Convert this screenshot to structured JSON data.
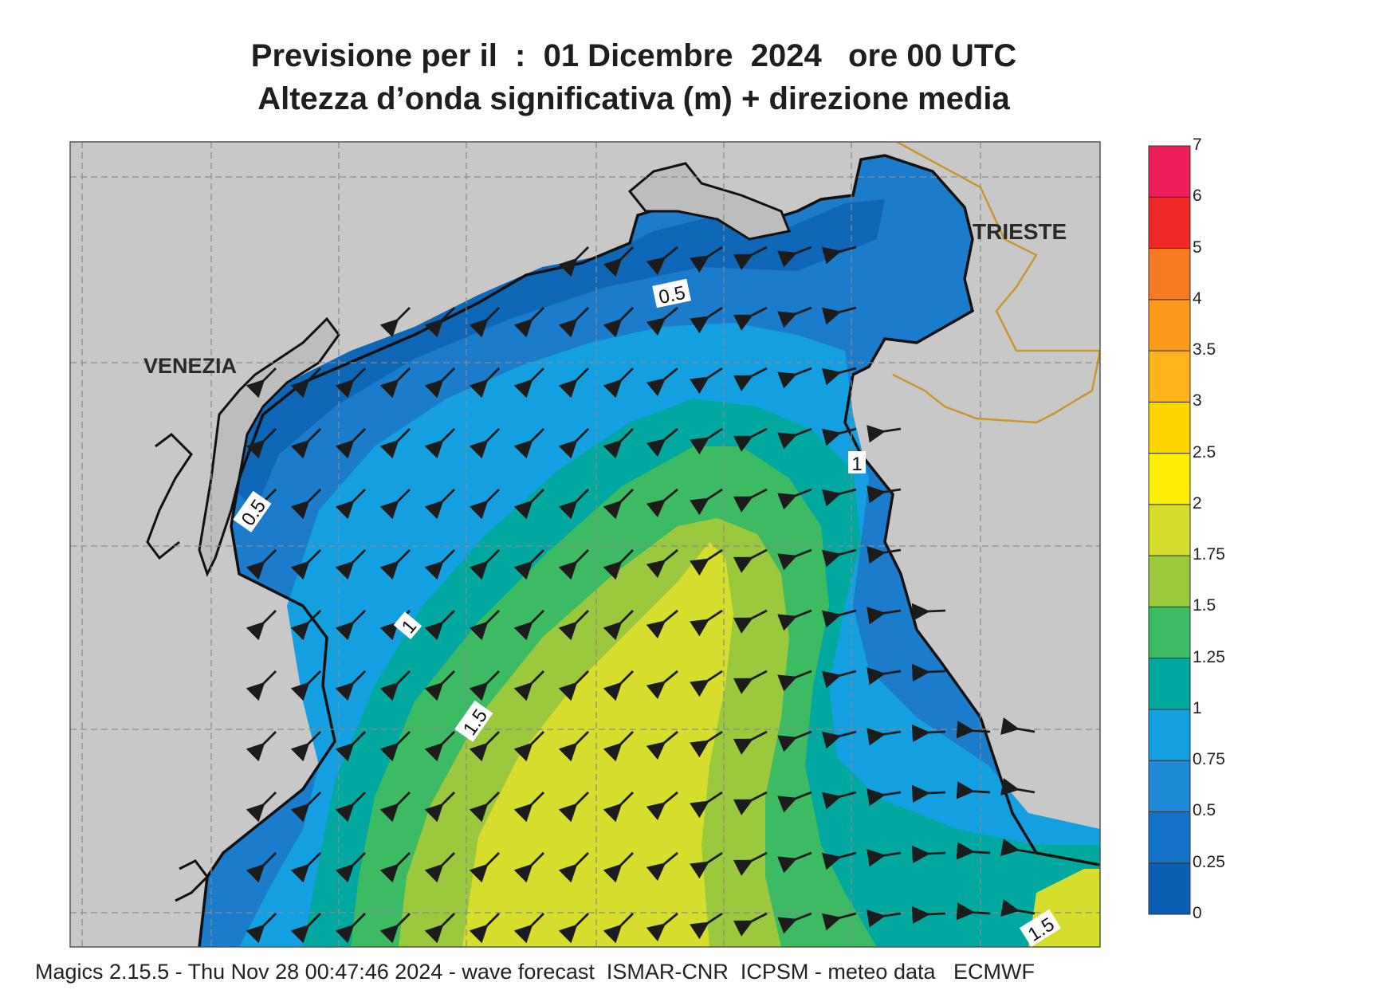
{
  "title": {
    "line1": "Previsione per il  :  01 Dicembre  2024   ore 00 UTC",
    "line2": "Altezza d’onda significativa (m) + direzione media"
  },
  "places": {
    "venezia": "VENEZIA",
    "trieste": "TRIESTE"
  },
  "contour_labels": {
    "a": "0.5",
    "b": "0.5",
    "c": "1",
    "d": "1",
    "e": "1.5",
    "f": "1.5"
  },
  "legend": {
    "levels": [
      "0",
      "0.25",
      "0.5",
      "0.75",
      "1",
      "1.25",
      "1.5",
      "1.75",
      "2",
      "2.5",
      "3",
      "3.5",
      "4",
      "5",
      "6",
      "7"
    ],
    "colors": [
      "#0a5fb4",
      "#1273c7",
      "#1f8bd8",
      "#139fe0",
      "#00a8a0",
      "#3dbb62",
      "#9bc93d",
      "#d6dd2c",
      "#fcef03",
      "#ffd500",
      "#ffb41c",
      "#fb9a1c",
      "#f77b22",
      "#ee2a28",
      "#ec1f5a"
    ]
  },
  "footer": "Magics 2.15.5 - Thu Nov 28 00:47:46 2024 - wave forecast  ISMAR-CNR  ICPSM - meteo data   ECMWF"
}
